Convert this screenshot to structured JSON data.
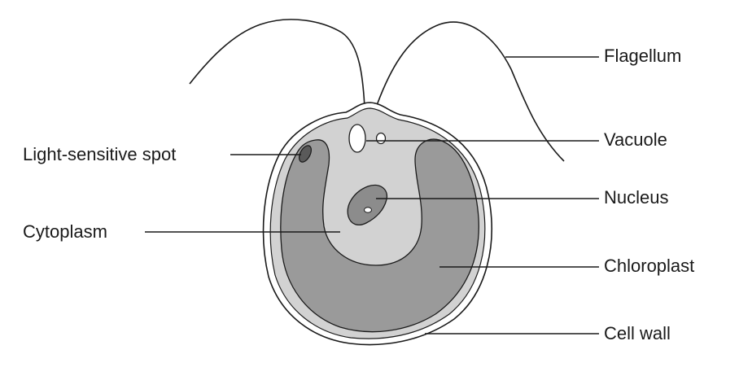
{
  "labels": {
    "flagellum": "Flagellum",
    "vacuole": "Vacuole",
    "nucleus": "Nucleus",
    "chloroplast": "Chloroplast",
    "cell_wall": "Cell wall",
    "light_spot": "Light-sensitive spot",
    "cytoplasm": "Cytoplasm"
  },
  "colors": {
    "stroke": "#1a1a1a",
    "cytoplasm_fill": "#d2d2d2",
    "chloroplast_fill": "#9a9a9a",
    "nucleus_fill": "#8c8c8c",
    "eyespot_fill": "#5a5a5a",
    "background": "#ffffff"
  }
}
